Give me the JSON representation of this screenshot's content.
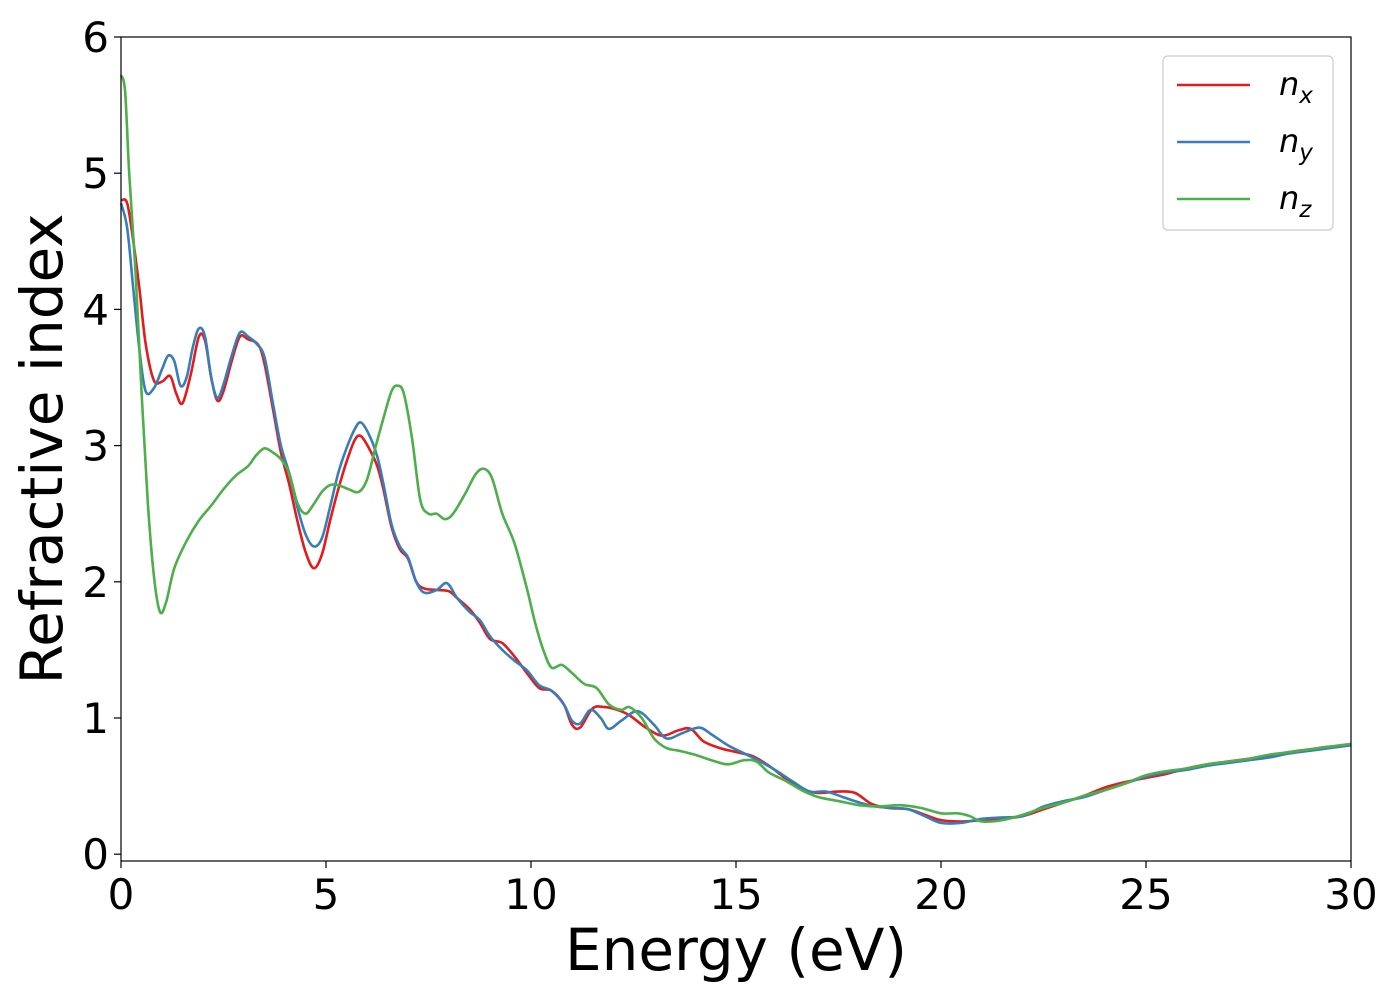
{
  "chart_data": {
    "type": "line",
    "xlabel": "Energy (eV)",
    "ylabel": "Refractive index",
    "xlim": [
      0,
      30
    ],
    "ylim": [
      -0.05,
      6
    ],
    "xticks": [
      0,
      5,
      10,
      15,
      20,
      25,
      30
    ],
    "yticks": [
      0,
      1,
      2,
      3,
      4,
      5,
      6
    ],
    "grid": false,
    "legend_position": "top-right",
    "series": [
      {
        "name": "n_x",
        "label_base": "n",
        "label_sub": "x",
        "color": "#e41a1c",
        "points": [
          [
            0,
            4.8
          ],
          [
            0.15,
            4.78
          ],
          [
            0.3,
            4.5
          ],
          [
            0.45,
            4.15
          ],
          [
            0.6,
            3.75
          ],
          [
            0.8,
            3.48
          ],
          [
            1.0,
            3.47
          ],
          [
            1.2,
            3.51
          ],
          [
            1.35,
            3.38
          ],
          [
            1.5,
            3.31
          ],
          [
            1.7,
            3.52
          ],
          [
            1.9,
            3.8
          ],
          [
            2.05,
            3.77
          ],
          [
            2.2,
            3.5
          ],
          [
            2.35,
            3.33
          ],
          [
            2.5,
            3.4
          ],
          [
            2.7,
            3.62
          ],
          [
            2.9,
            3.8
          ],
          [
            3.1,
            3.78
          ],
          [
            3.35,
            3.74
          ],
          [
            3.5,
            3.6
          ],
          [
            3.7,
            3.28
          ],
          [
            3.9,
            2.95
          ],
          [
            4.1,
            2.72
          ],
          [
            4.3,
            2.45
          ],
          [
            4.5,
            2.22
          ],
          [
            4.7,
            2.1
          ],
          [
            4.9,
            2.2
          ],
          [
            5.1,
            2.45
          ],
          [
            5.3,
            2.68
          ],
          [
            5.5,
            2.88
          ],
          [
            5.7,
            3.04
          ],
          [
            5.85,
            3.07
          ],
          [
            6.05,
            2.98
          ],
          [
            6.25,
            2.85
          ],
          [
            6.4,
            2.68
          ],
          [
            6.6,
            2.4
          ],
          [
            6.8,
            2.24
          ],
          [
            7.0,
            2.17
          ],
          [
            7.2,
            2.0
          ],
          [
            7.4,
            1.95
          ],
          [
            7.7,
            1.94
          ],
          [
            8.0,
            1.93
          ],
          [
            8.2,
            1.88
          ],
          [
            8.5,
            1.8
          ],
          [
            8.75,
            1.7
          ],
          [
            9.0,
            1.58
          ],
          [
            9.3,
            1.55
          ],
          [
            9.6,
            1.45
          ],
          [
            9.9,
            1.33
          ],
          [
            10.2,
            1.22
          ],
          [
            10.5,
            1.2
          ],
          [
            10.8,
            1.1
          ],
          [
            11.0,
            0.95
          ],
          [
            11.2,
            0.93
          ],
          [
            11.5,
            1.07
          ],
          [
            11.8,
            1.08
          ],
          [
            12.1,
            1.06
          ],
          [
            12.4,
            1.02
          ],
          [
            12.8,
            0.93
          ],
          [
            13.2,
            0.87
          ],
          [
            13.6,
            0.91
          ],
          [
            13.9,
            0.92
          ],
          [
            14.2,
            0.83
          ],
          [
            14.6,
            0.78
          ],
          [
            15.0,
            0.75
          ],
          [
            15.4,
            0.72
          ],
          [
            15.8,
            0.65
          ],
          [
            16.2,
            0.56
          ],
          [
            16.6,
            0.48
          ],
          [
            17.0,
            0.45
          ],
          [
            17.5,
            0.46
          ],
          [
            17.9,
            0.45
          ],
          [
            18.3,
            0.37
          ],
          [
            18.7,
            0.34
          ],
          [
            19.2,
            0.33
          ],
          [
            19.6,
            0.29
          ],
          [
            20.0,
            0.25
          ],
          [
            20.5,
            0.24
          ],
          [
            21.0,
            0.25
          ],
          [
            21.5,
            0.26
          ],
          [
            22.0,
            0.28
          ],
          [
            22.5,
            0.33
          ],
          [
            23.0,
            0.38
          ],
          [
            23.5,
            0.43
          ],
          [
            24.0,
            0.49
          ],
          [
            24.5,
            0.53
          ],
          [
            25.0,
            0.56
          ],
          [
            25.5,
            0.59
          ],
          [
            26.0,
            0.63
          ],
          [
            26.5,
            0.66
          ],
          [
            27.0,
            0.68
          ],
          [
            27.5,
            0.7
          ],
          [
            28.0,
            0.72
          ],
          [
            28.5,
            0.75
          ],
          [
            29.0,
            0.77
          ],
          [
            29.5,
            0.79
          ],
          [
            30.0,
            0.8
          ]
        ]
      },
      {
        "name": "n_y",
        "label_base": "n",
        "label_sub": "y",
        "color": "#377eb8",
        "points": [
          [
            0,
            4.78
          ],
          [
            0.15,
            4.6
          ],
          [
            0.3,
            4.15
          ],
          [
            0.45,
            3.7
          ],
          [
            0.6,
            3.4
          ],
          [
            0.8,
            3.42
          ],
          [
            1.0,
            3.56
          ],
          [
            1.15,
            3.66
          ],
          [
            1.3,
            3.62
          ],
          [
            1.45,
            3.44
          ],
          [
            1.6,
            3.5
          ],
          [
            1.75,
            3.72
          ],
          [
            1.9,
            3.86
          ],
          [
            2.05,
            3.8
          ],
          [
            2.2,
            3.5
          ],
          [
            2.35,
            3.35
          ],
          [
            2.5,
            3.45
          ],
          [
            2.7,
            3.66
          ],
          [
            2.9,
            3.83
          ],
          [
            3.1,
            3.8
          ],
          [
            3.3,
            3.75
          ],
          [
            3.5,
            3.65
          ],
          [
            3.7,
            3.32
          ],
          [
            3.9,
            3.0
          ],
          [
            4.1,
            2.8
          ],
          [
            4.3,
            2.55
          ],
          [
            4.5,
            2.35
          ],
          [
            4.7,
            2.26
          ],
          [
            4.9,
            2.32
          ],
          [
            5.1,
            2.55
          ],
          [
            5.3,
            2.8
          ],
          [
            5.5,
            2.98
          ],
          [
            5.7,
            3.12
          ],
          [
            5.85,
            3.17
          ],
          [
            6.05,
            3.08
          ],
          [
            6.25,
            2.92
          ],
          [
            6.4,
            2.72
          ],
          [
            6.6,
            2.42
          ],
          [
            6.8,
            2.26
          ],
          [
            7.0,
            2.18
          ],
          [
            7.2,
            2.0
          ],
          [
            7.4,
            1.92
          ],
          [
            7.7,
            1.94
          ],
          [
            7.95,
            1.99
          ],
          [
            8.2,
            1.88
          ],
          [
            8.5,
            1.78
          ],
          [
            8.75,
            1.72
          ],
          [
            9.0,
            1.6
          ],
          [
            9.3,
            1.5
          ],
          [
            9.6,
            1.42
          ],
          [
            9.9,
            1.35
          ],
          [
            10.2,
            1.24
          ],
          [
            10.5,
            1.2
          ],
          [
            10.8,
            1.1
          ],
          [
            11.0,
            0.98
          ],
          [
            11.2,
            0.96
          ],
          [
            11.45,
            1.06
          ],
          [
            11.7,
            1.0
          ],
          [
            11.9,
            0.92
          ],
          [
            12.2,
            0.98
          ],
          [
            12.6,
            1.05
          ],
          [
            13.0,
            0.95
          ],
          [
            13.3,
            0.85
          ],
          [
            13.7,
            0.89
          ],
          [
            14.1,
            0.93
          ],
          [
            14.4,
            0.88
          ],
          [
            14.8,
            0.8
          ],
          [
            15.2,
            0.74
          ],
          [
            15.6,
            0.68
          ],
          [
            16.0,
            0.61
          ],
          [
            16.4,
            0.53
          ],
          [
            16.8,
            0.46
          ],
          [
            17.2,
            0.46
          ],
          [
            17.6,
            0.42
          ],
          [
            18.0,
            0.38
          ],
          [
            18.4,
            0.35
          ],
          [
            18.8,
            0.34
          ],
          [
            19.2,
            0.33
          ],
          [
            19.6,
            0.28
          ],
          [
            20.0,
            0.23
          ],
          [
            20.5,
            0.23
          ],
          [
            21.0,
            0.26
          ],
          [
            21.5,
            0.27
          ],
          [
            22.0,
            0.28
          ],
          [
            22.5,
            0.35
          ],
          [
            23.0,
            0.39
          ],
          [
            23.5,
            0.42
          ],
          [
            24.0,
            0.47
          ],
          [
            24.5,
            0.52
          ],
          [
            25.0,
            0.57
          ],
          [
            25.5,
            0.6
          ],
          [
            26.0,
            0.62
          ],
          [
            26.5,
            0.65
          ],
          [
            27.0,
            0.67
          ],
          [
            27.5,
            0.69
          ],
          [
            28.0,
            0.71
          ],
          [
            28.5,
            0.74
          ],
          [
            29.0,
            0.76
          ],
          [
            29.5,
            0.78
          ],
          [
            30.0,
            0.8
          ]
        ]
      },
      {
        "name": "n_z",
        "label_base": "n",
        "label_sub": "z",
        "color": "#4daf4a",
        "points": [
          [
            0,
            5.72
          ],
          [
            0.1,
            5.6
          ],
          [
            0.2,
            5.0
          ],
          [
            0.35,
            4.3
          ],
          [
            0.5,
            3.4
          ],
          [
            0.65,
            2.6
          ],
          [
            0.8,
            2.05
          ],
          [
            0.95,
            1.78
          ],
          [
            1.1,
            1.85
          ],
          [
            1.3,
            2.1
          ],
          [
            1.6,
            2.3
          ],
          [
            1.9,
            2.45
          ],
          [
            2.2,
            2.56
          ],
          [
            2.5,
            2.68
          ],
          [
            2.8,
            2.78
          ],
          [
            3.1,
            2.85
          ],
          [
            3.3,
            2.93
          ],
          [
            3.5,
            2.98
          ],
          [
            3.7,
            2.95
          ],
          [
            3.9,
            2.9
          ],
          [
            4.1,
            2.8
          ],
          [
            4.3,
            2.58
          ],
          [
            4.5,
            2.5
          ],
          [
            4.7,
            2.57
          ],
          [
            4.9,
            2.66
          ],
          [
            5.1,
            2.71
          ],
          [
            5.3,
            2.71
          ],
          [
            5.55,
            2.68
          ],
          [
            5.8,
            2.66
          ],
          [
            6.0,
            2.75
          ],
          [
            6.2,
            2.98
          ],
          [
            6.4,
            3.2
          ],
          [
            6.6,
            3.4
          ],
          [
            6.75,
            3.44
          ],
          [
            6.9,
            3.38
          ],
          [
            7.1,
            3.05
          ],
          [
            7.3,
            2.6
          ],
          [
            7.5,
            2.5
          ],
          [
            7.7,
            2.5
          ],
          [
            7.9,
            2.46
          ],
          [
            8.1,
            2.5
          ],
          [
            8.4,
            2.65
          ],
          [
            8.65,
            2.79
          ],
          [
            8.85,
            2.83
          ],
          [
            9.05,
            2.76
          ],
          [
            9.3,
            2.5
          ],
          [
            9.6,
            2.28
          ],
          [
            9.9,
            1.95
          ],
          [
            10.1,
            1.7
          ],
          [
            10.3,
            1.5
          ],
          [
            10.5,
            1.37
          ],
          [
            10.75,
            1.39
          ],
          [
            11.0,
            1.33
          ],
          [
            11.3,
            1.25
          ],
          [
            11.6,
            1.22
          ],
          [
            11.9,
            1.1
          ],
          [
            12.2,
            1.06
          ],
          [
            12.4,
            1.08
          ],
          [
            12.7,
            1.0
          ],
          [
            13.0,
            0.85
          ],
          [
            13.3,
            0.78
          ],
          [
            13.6,
            0.76
          ],
          [
            14.0,
            0.73
          ],
          [
            14.4,
            0.69
          ],
          [
            14.8,
            0.66
          ],
          [
            15.2,
            0.69
          ],
          [
            15.5,
            0.68
          ],
          [
            15.8,
            0.6
          ],
          [
            16.2,
            0.54
          ],
          [
            16.6,
            0.47
          ],
          [
            17.0,
            0.42
          ],
          [
            17.5,
            0.39
          ],
          [
            18.0,
            0.36
          ],
          [
            18.5,
            0.35
          ],
          [
            19.0,
            0.36
          ],
          [
            19.5,
            0.34
          ],
          [
            20.0,
            0.3
          ],
          [
            20.4,
            0.3
          ],
          [
            20.7,
            0.28
          ],
          [
            21.0,
            0.24
          ],
          [
            21.5,
            0.25
          ],
          [
            22.0,
            0.29
          ],
          [
            22.5,
            0.34
          ],
          [
            23.0,
            0.38
          ],
          [
            23.5,
            0.43
          ],
          [
            24.0,
            0.47
          ],
          [
            24.5,
            0.52
          ],
          [
            25.0,
            0.58
          ],
          [
            25.5,
            0.61
          ],
          [
            26.0,
            0.63
          ],
          [
            26.5,
            0.66
          ],
          [
            27.0,
            0.68
          ],
          [
            27.5,
            0.7
          ],
          [
            28.0,
            0.73
          ],
          [
            28.5,
            0.75
          ],
          [
            29.0,
            0.77
          ],
          [
            29.5,
            0.79
          ],
          [
            30.0,
            0.81
          ]
        ]
      }
    ]
  }
}
